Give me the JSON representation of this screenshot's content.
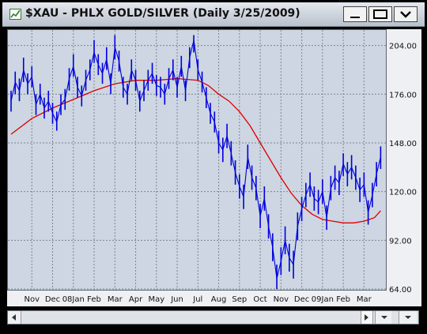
{
  "window": {
    "title": "$XAU - PHLX GOLD/SILVER (Daily 3/25/2009)",
    "icon": "chart-icon",
    "controls": [
      "minimize-icon",
      "maximize-icon",
      "menu-chevron-icon"
    ]
  },
  "colors": {
    "price": "#0000dd",
    "moving_average": "#dd0000",
    "plot_bg": "#cdd6e2"
  },
  "chart_data": {
    "type": "line",
    "title": "$XAU - PHLX GOLD/SILVER (Daily 3/25/2009)",
    "xlabel": "",
    "ylabel": "",
    "ylim": [
      64,
      212
    ],
    "y_ticks": [
      64,
      92,
      120,
      148,
      176,
      204
    ],
    "y_tick_labels": [
      "64.00",
      "92.00",
      "120.00",
      "148.00",
      "176.00",
      "204.00"
    ],
    "x_ticks": [
      {
        "label": "Nov",
        "month": 1
      },
      {
        "label": "Dec",
        "month": 2
      },
      {
        "label": "08Jan",
        "month": 3
      },
      {
        "label": "Feb",
        "month": 4
      },
      {
        "label": "Mar",
        "month": 5
      },
      {
        "label": "Apr",
        "month": 6
      },
      {
        "label": "May",
        "month": 7
      },
      {
        "label": "Jun",
        "month": 8
      },
      {
        "label": "Jul",
        "month": 9
      },
      {
        "label": "Aug",
        "month": 10
      },
      {
        "label": "Sep",
        "month": 11
      },
      {
        "label": "Oct",
        "month": 12
      },
      {
        "label": "Nov",
        "month": 13
      },
      {
        "label": "Dec",
        "month": 14
      },
      {
        "label": "09Jan",
        "month": 15
      },
      {
        "label": "Feb",
        "month": 16
      },
      {
        "label": "Mar",
        "month": 17
      }
    ],
    "x_range": [
      0,
      17.9
    ],
    "series": [
      {
        "name": "",
        "style": "price-bars",
        "x": [
          0.0,
          0.2,
          0.4,
          0.6,
          0.8,
          1.0,
          1.2,
          1.4,
          1.6,
          1.8,
          2.0,
          2.2,
          2.4,
          2.6,
          2.8,
          3.0,
          3.2,
          3.4,
          3.6,
          3.8,
          4.0,
          4.2,
          4.4,
          4.6,
          4.8,
          5.0,
          5.2,
          5.4,
          5.6,
          5.8,
          6.0,
          6.2,
          6.4,
          6.6,
          6.8,
          7.0,
          7.2,
          7.4,
          7.6,
          7.8,
          8.0,
          8.2,
          8.4,
          8.6,
          8.8,
          9.0,
          9.2,
          9.4,
          9.6,
          9.8,
          10.0,
          10.2,
          10.4,
          10.6,
          10.8,
          11.0,
          11.2,
          11.4,
          11.6,
          11.8,
          12.0,
          12.2,
          12.4,
          12.6,
          12.8,
          13.0,
          13.2,
          13.4,
          13.6,
          13.8,
          14.0,
          14.2,
          14.4,
          14.6,
          14.8,
          15.0,
          15.2,
          15.4,
          15.6,
          15.8,
          16.0,
          16.2,
          16.4,
          16.6,
          16.8,
          17.0,
          17.2,
          17.4,
          17.6,
          17.8
        ],
        "values": [
          172,
          183,
          178,
          190,
          182,
          186,
          170,
          176,
          168,
          172,
          165,
          160,
          170,
          173,
          185,
          192,
          180,
          175,
          184,
          190,
          200,
          193,
          188,
          196,
          182,
          203,
          195,
          180,
          176,
          190,
          184,
          172,
          178,
          184,
          188,
          181,
          180,
          176,
          185,
          190,
          180,
          192,
          178,
          197,
          207,
          190,
          183,
          174,
          165,
          160,
          148,
          144,
          152,
          142,
          131,
          123,
          117,
          140,
          128,
          122,
          106,
          116,
          100,
          88,
          70,
          80,
          92,
          82,
          78,
          100,
          110,
          118,
          124,
          116,
          114,
          120,
          105,
          122,
          128,
          125,
          136,
          130,
          134,
          128,
          121,
          124,
          108,
          118,
          130,
          140
        ],
        "ranges": [
          [
            166,
            178
          ],
          [
            176,
            189
          ],
          [
            172,
            185
          ],
          [
            183,
            197
          ],
          [
            176,
            188
          ],
          [
            180,
            192
          ],
          [
            164,
            176
          ],
          [
            170,
            182
          ],
          [
            162,
            174
          ],
          [
            166,
            178
          ],
          [
            159,
            171
          ],
          [
            155,
            166
          ],
          [
            164,
            176
          ],
          [
            167,
            179
          ],
          [
            178,
            191
          ],
          [
            186,
            199
          ],
          [
            174,
            186
          ],
          [
            169,
            181
          ],
          [
            178,
            190
          ],
          [
            184,
            196
          ],
          [
            194,
            207
          ],
          [
            187,
            199
          ],
          [
            182,
            194
          ],
          [
            190,
            203
          ],
          [
            176,
            188
          ],
          [
            196,
            210
          ],
          [
            189,
            201
          ],
          [
            174,
            186
          ],
          [
            170,
            182
          ],
          [
            184,
            196
          ],
          [
            178,
            190
          ],
          [
            166,
            178
          ],
          [
            172,
            184
          ],
          [
            178,
            190
          ],
          [
            182,
            194
          ],
          [
            175,
            187
          ],
          [
            174,
            186
          ],
          [
            170,
            182
          ],
          [
            179,
            191
          ],
          [
            184,
            196
          ],
          [
            174,
            186
          ],
          [
            186,
            198
          ],
          [
            172,
            184
          ],
          [
            191,
            203
          ],
          [
            200,
            210
          ],
          [
            184,
            196
          ],
          [
            177,
            189
          ],
          [
            168,
            180
          ],
          [
            159,
            171
          ],
          [
            154,
            166
          ],
          [
            142,
            155
          ],
          [
            137,
            151
          ],
          [
            145,
            159
          ],
          [
            135,
            149
          ],
          [
            124,
            138
          ],
          [
            116,
            130
          ],
          [
            110,
            124
          ],
          [
            133,
            147
          ],
          [
            121,
            135
          ],
          [
            115,
            129
          ],
          [
            99,
            113
          ],
          [
            109,
            123
          ],
          [
            93,
            107
          ],
          [
            80,
            96
          ],
          [
            64,
            78
          ],
          [
            72,
            88
          ],
          [
            84,
            100
          ],
          [
            74,
            90
          ],
          [
            70,
            86
          ],
          [
            92,
            108
          ],
          [
            103,
            117
          ],
          [
            111,
            125
          ],
          [
            117,
            131
          ],
          [
            109,
            123
          ],
          [
            107,
            121
          ],
          [
            113,
            127
          ],
          [
            98,
            112
          ],
          [
            115,
            129
          ],
          [
            121,
            135
          ],
          [
            118,
            132
          ],
          [
            129,
            142
          ],
          [
            123,
            137
          ],
          [
            127,
            141
          ],
          [
            121,
            135
          ],
          [
            114,
            128
          ],
          [
            117,
            131
          ],
          [
            101,
            115
          ],
          [
            111,
            125
          ],
          [
            123,
            137
          ],
          [
            133,
            146
          ]
        ]
      },
      {
        "name": "",
        "style": "moving-average",
        "x": [
          0.0,
          1.0,
          2.0,
          3.0,
          4.0,
          5.0,
          6.0,
          7.0,
          8.0,
          9.0,
          9.5,
          10.0,
          10.5,
          11.0,
          11.5,
          12.0,
          12.5,
          13.0,
          13.5,
          14.0,
          14.5,
          15.0,
          15.5,
          16.0,
          16.5,
          17.0,
          17.5,
          17.8
        ],
        "values": [
          153,
          162,
          168,
          173,
          178,
          182,
          184,
          184,
          185,
          184,
          181,
          176,
          172,
          166,
          158,
          148,
          138,
          128,
          119,
          112,
          107,
          104,
          103,
          102,
          102,
          103,
          105,
          109
        ]
      }
    ],
    "grid": true,
    "legend": "none"
  },
  "scrollbar": {
    "left": "arrow-left-icon",
    "right": "arrow-right-icon"
  }
}
